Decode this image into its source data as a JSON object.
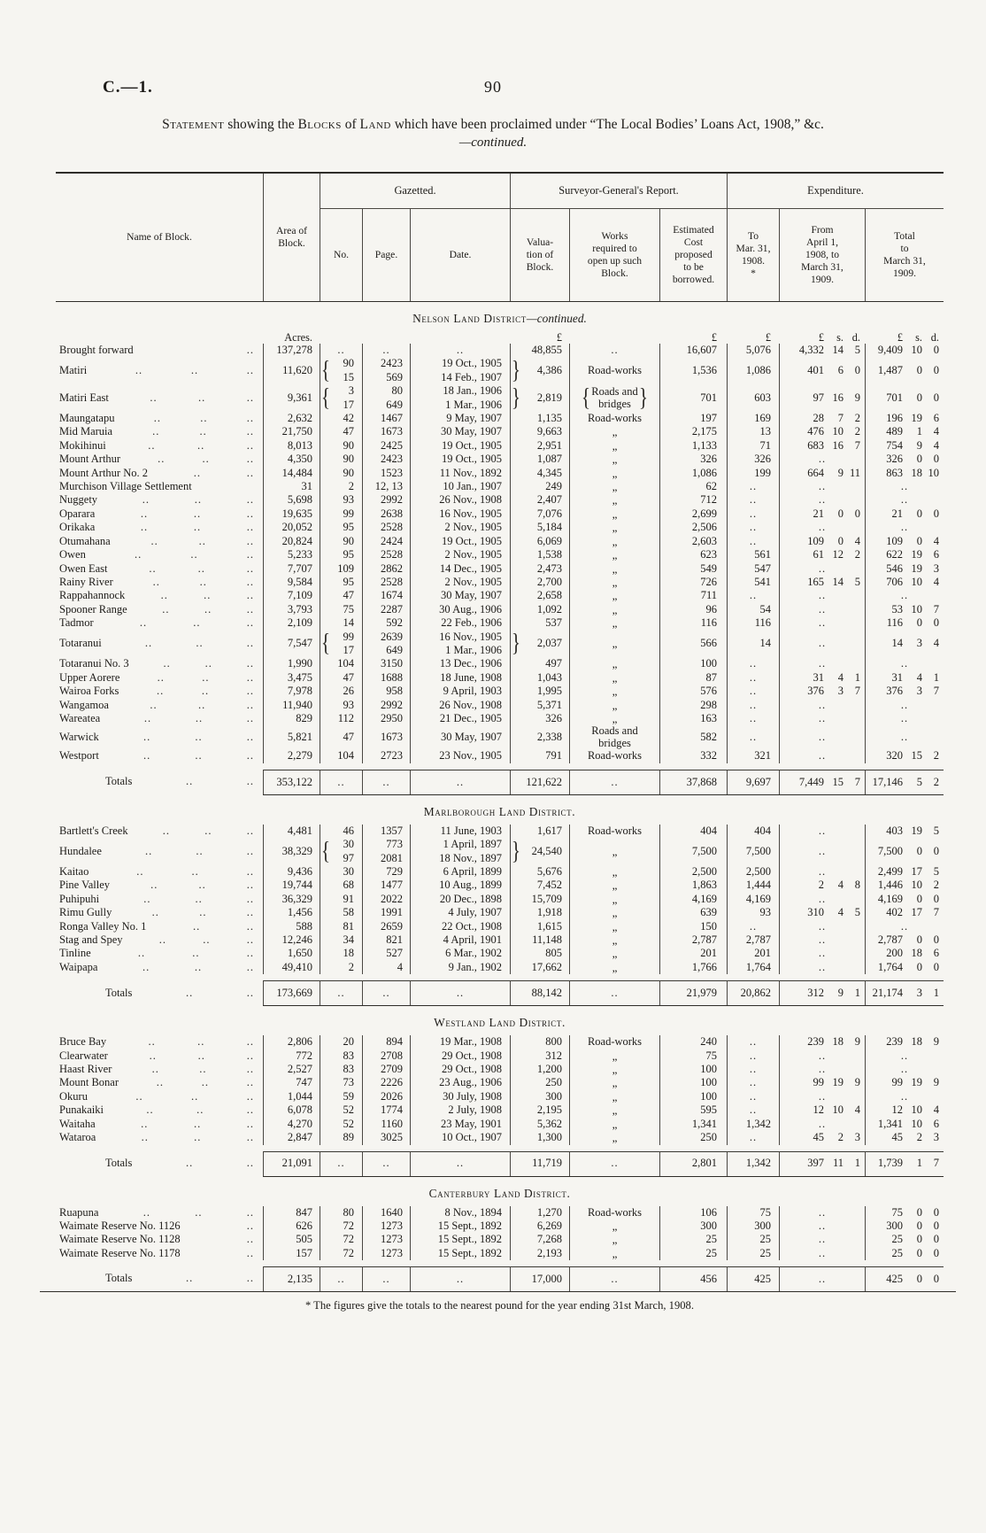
{
  "page": {
    "doc_ref": "C.—1.",
    "page_number": "90"
  },
  "title": {
    "segments": [
      {
        "text": "Statement",
        "smallcaps": true
      },
      {
        "text": " showing the ",
        "smallcaps": false
      },
      {
        "text": "Blocks",
        "smallcaps": true
      },
      {
        "text": " of ",
        "smallcaps": false
      },
      {
        "text": "Land",
        "smallcaps": true
      },
      {
        "text": " which have been proclaimed under “The Local Bodies’ Loans Act, 1908,” &c.",
        "smallcaps": false
      }
    ],
    "continued": "—continued."
  },
  "table": {
    "columns": {
      "name": "Name of Block.",
      "area": "Area of\nBlock.",
      "gazetted": "Gazetted.",
      "no": "No.",
      "page": "Page.",
      "date": "Date.",
      "sg_report": "Surveyor-General's Report.",
      "valuation": "Valua-\ntion of\nBlock.",
      "works": "Works\nrequired to\nopen up such\nBlock.",
      "est_cost": "Estimated\nCost\nproposed\nto be\nborrowed.",
      "expenditure": "Expenditure.",
      "to_mar": "To\nMar. 31,\n1908.\n*",
      "from_apr": "From\nApril 1,\n1908, to\nMarch 31,\n1909.",
      "total": "Total\nto\nMarch 31,\n1909."
    },
    "units": {
      "area": "Acres.",
      "val": "£",
      "est": "£",
      "prior": "£",
      "cur": "£ s. d.",
      "total": "£ s. d."
    },
    "totals_label": "Totals"
  },
  "sections": [
    {
      "heading": "Nelson Land District",
      "heading_suffix": "—continued.",
      "show_units": true,
      "rows": [
        {
          "name": "Brought forward",
          "dots": 1,
          "area": "137,278",
          "no": "..",
          "page": "..",
          "date": "..",
          "val": "48,855",
          "works": "..",
          "est": "16,607",
          "prior": "5,076",
          "cur": "4,332 14 5",
          "total": "9,409 10 0"
        },
        {
          "name": "Matiri",
          "area": "11,620",
          "no": [
            "90",
            "15"
          ],
          "page": [
            "2423",
            "569"
          ],
          "date": [
            "19 Oct., 1905",
            "14 Feb., 1907"
          ],
          "braced": true,
          "val": "4,386",
          "works": "Road-works",
          "est": "1,536",
          "prior": "1,086",
          "cur": "401 6 0",
          "total": "1,487 0 0"
        },
        {
          "name": "Matiri East",
          "area": "9,361",
          "no": [
            "3",
            "17"
          ],
          "page": [
            "80",
            "649"
          ],
          "date": [
            "18 Jan., 1906",
            "1 Mar., 1906"
          ],
          "braced": true,
          "val": "2,819",
          "works": "Roads and\nbridges",
          "works_braces": true,
          "est": "701",
          "prior": "603",
          "cur": "97 16 9",
          "total": "701 0 0"
        },
        {
          "name": "Maungatapu",
          "area": "2,632",
          "no": "42",
          "page": "1467",
          "date": "9 May, 1907",
          "val": "1,135",
          "works": "Road-works",
          "est": "197",
          "prior": "169",
          "cur": "28 7 2",
          "total": "196 19 6"
        },
        {
          "name": "Mid Maruia",
          "area": "21,750",
          "no": "47",
          "page": "1673",
          "date": "30 May, 1907",
          "val": "9,663",
          "works": "„",
          "est": "2,175",
          "prior": "13",
          "cur": "476 10 2",
          "total": "489 1 4"
        },
        {
          "name": "Mokihinui",
          "area": "8,013",
          "no": "90",
          "page": "2425",
          "date": "19 Oct., 1905",
          "val": "2,951",
          "works": "„",
          "est": "1,133",
          "prior": "71",
          "cur": "683 16 7",
          "total": "754 9 4"
        },
        {
          "name": "Mount Arthur",
          "area": "4,350",
          "no": "90",
          "page": "2423",
          "date": "19 Oct., 1905",
          "val": "1,087",
          "works": "„",
          "est": "326",
          "prior": "326",
          "cur": "..",
          "total": "326 0 0"
        },
        {
          "name": "Mount Arthur No. 2",
          "area": "14,484",
          "no": "90",
          "page": "1523",
          "date": "11 Nov., 1892",
          "val": "4,345",
          "works": "„",
          "est": "1,086",
          "prior": "199",
          "cur": "664 9 11",
          "total": "863 18 10"
        },
        {
          "name": "Murchison Village Settlement",
          "dots": 0,
          "area": "31",
          "no": "2",
          "page": "12, 13",
          "date": "10 Jan., 1907",
          "val": "249",
          "works": "„",
          "est": "62",
          "prior": "..",
          "cur": "..",
          "total": ".."
        },
        {
          "name": "Nuggety",
          "area": "5,698",
          "no": "93",
          "page": "2992",
          "date": "26 Nov., 1908",
          "val": "2,407",
          "works": "„",
          "est": "712",
          "prior": "..",
          "cur": "..",
          "total": ".."
        },
        {
          "name": "Oparara",
          "area": "19,635",
          "no": "99",
          "page": "2638",
          "date": "16 Nov., 1905",
          "val": "7,076",
          "works": "„",
          "est": "2,699",
          "prior": "..",
          "cur": "21 0 0",
          "total": "21 0 0"
        },
        {
          "name": "Orikaka",
          "area": "20,052",
          "no": "95",
          "page": "2528",
          "date": "2 Nov., 1905",
          "val": "5,184",
          "works": "„",
          "est": "2,506",
          "prior": "..",
          "cur": "..",
          "total": ".."
        },
        {
          "name": "Otumahana",
          "area": "20,824",
          "no": "90",
          "page": "2424",
          "date": "19 Oct., 1905",
          "val": "6,069",
          "works": "„",
          "est": "2,603",
          "prior": "..",
          "cur": "109 0 4",
          "total": "109 0 4"
        },
        {
          "name": "Owen",
          "area": "5,233",
          "no": "95",
          "page": "2528",
          "date": "2 Nov., 1905",
          "val": "1,538",
          "works": "„",
          "est": "623",
          "prior": "561",
          "cur": "61 12 2",
          "total": "622 19 6"
        },
        {
          "name": "Owen East",
          "area": "7,707",
          "no": "109",
          "page": "2862",
          "date": "14 Dec., 1905",
          "val": "2,473",
          "works": "„",
          "est": "549",
          "prior": "547",
          "cur": "..",
          "total": "546 19 3"
        },
        {
          "name": "Rainy River",
          "area": "9,584",
          "no": "95",
          "page": "2528",
          "date": "2 Nov., 1905",
          "val": "2,700",
          "works": "„",
          "est": "726",
          "prior": "541",
          "cur": "165 14 5",
          "total": "706 10 4"
        },
        {
          "name": "Rappahannock",
          "area": "7,109",
          "no": "47",
          "page": "1674",
          "date": "30 May, 1907",
          "val": "2,658",
          "works": "„",
          "est": "711",
          "prior": "..",
          "cur": "..",
          "total": ".."
        },
        {
          "name": "Spooner Range",
          "area": "3,793",
          "no": "75",
          "page": "2287",
          "date": "30 Aug., 1906",
          "val": "1,092",
          "works": "„",
          "est": "96",
          "prior": "54",
          "cur": "..",
          "total": "53 10 7"
        },
        {
          "name": "Tadmor",
          "area": "2,109",
          "no": "14",
          "page": "592",
          "date": "22 Feb., 1906",
          "val": "537",
          "works": "„",
          "est": "116",
          "prior": "116",
          "cur": "..",
          "total": "116 0 0"
        },
        {
          "name": "Totaranui",
          "area": "7,547",
          "no": [
            "99",
            "17"
          ],
          "page": [
            "2639",
            "649"
          ],
          "date": [
            "16 Nov., 1905",
            "1 Mar., 1906"
          ],
          "braced": true,
          "val": "2,037",
          "works": "„",
          "est": "566",
          "prior": "14",
          "cur": "..",
          "total": "14 3 4"
        },
        {
          "name": "Totaranui No. 3",
          "area": "1,990",
          "no": "104",
          "page": "3150",
          "date": "13 Dec., 1906",
          "val": "497",
          "works": "„",
          "est": "100",
          "prior": "..",
          "cur": "..",
          "total": ".."
        },
        {
          "name": "Upper Aorere",
          "area": "3,475",
          "no": "47",
          "page": "1688",
          "date": "18 June, 1908",
          "val": "1,043",
          "works": "„",
          "est": "87",
          "prior": "..",
          "cur": "31 4 1",
          "total": "31 4 1"
        },
        {
          "name": "Wairoa Forks",
          "area": "7,978",
          "no": "26",
          "page": "958",
          "date": "9 April, 1903",
          "val": "1,995",
          "works": "„",
          "est": "576",
          "prior": "..",
          "cur": "376 3 7",
          "total": "376 3 7"
        },
        {
          "name": "Wangamoa",
          "area": "11,940",
          "no": "93",
          "page": "2992",
          "date": "26 Nov., 1908",
          "val": "5,371",
          "works": "„",
          "est": "298",
          "prior": "..",
          "cur": "..",
          "total": ".."
        },
        {
          "name": "Wareatea",
          "area": "829",
          "no": "112",
          "page": "2950",
          "date": "21 Dec., 1905",
          "val": "326",
          "works": "„",
          "est": "163",
          "prior": "..",
          "cur": "..",
          "total": ".."
        },
        {
          "name": "Warwick",
          "area": "5,821",
          "no": "47",
          "page": "1673",
          "date": "30 May, 1907",
          "val": "2,338",
          "works": "Roads and\nbridges",
          "est": "582",
          "prior": "..",
          "cur": "..",
          "total": ".."
        },
        {
          "name": "Westport",
          "area": "2,279",
          "no": "104",
          "page": "2723",
          "date": "23 Nov., 1905",
          "val": "791",
          "works": "Road-works",
          "est": "332",
          "prior": "321",
          "cur": "..",
          "total": "320 15 2"
        }
      ],
      "totals": {
        "area": "353,122",
        "val": "121,622",
        "est": "37,868",
        "prior": "9,697",
        "cur": "7,449 15 7",
        "total": "17,146 5 2"
      }
    },
    {
      "heading": "Marlborough Land District.",
      "heading_suffix": "",
      "show_units": false,
      "rows": [
        {
          "name": "Bartlett's Creek",
          "area": "4,481",
          "no": "46",
          "page": "1357",
          "date": "11 June, 1903",
          "val": "1,617",
          "works": "Road-works",
          "est": "404",
          "prior": "404",
          "cur": "..",
          "total": "403 19 5"
        },
        {
          "name": "Hundalee",
          "area": "38,329",
          "no": [
            "30",
            "97"
          ],
          "page": [
            "773",
            "2081"
          ],
          "date": [
            "1 April, 1897",
            "18 Nov., 1897"
          ],
          "braced": true,
          "val": "24,540",
          "works": "„",
          "est": "7,500",
          "prior": "7,500",
          "cur": "..",
          "total": "7,500 0 0"
        },
        {
          "name": "Kaitao",
          "area": "9,436",
          "no": "30",
          "page": "729",
          "date": "6 April, 1899",
          "val": "5,676",
          "works": "„",
          "est": "2,500",
          "prior": "2,500",
          "cur": "..",
          "total": "2,499 17 5"
        },
        {
          "name": "Pine Valley",
          "area": "19,744",
          "no": "68",
          "page": "1477",
          "date": "10 Aug., 1899",
          "val": "7,452",
          "works": "„",
          "est": "1,863",
          "prior": "1,444",
          "cur": "2 4 8",
          "total": "1,446 10 2"
        },
        {
          "name": "Puhipuhi",
          "area": "36,329",
          "no": "91",
          "page": "2022",
          "date": "20 Dec., 1898",
          "val": "15,709",
          "works": "„",
          "est": "4,169",
          "prior": "4,169",
          "cur": "..",
          "total": "4,169 0 0"
        },
        {
          "name": "Rimu Gully",
          "area": "1,456",
          "no": "58",
          "page": "1991",
          "date": "4 July, 1907",
          "val": "1,918",
          "works": "„",
          "est": "639",
          "prior": "93",
          "cur": "310 4 5",
          "total": "402 17 7"
        },
        {
          "name": "Ronga Valley No. 1",
          "area": "588",
          "no": "81",
          "page": "2659",
          "date": "22 Oct., 1908",
          "val": "1,615",
          "works": "„",
          "est": "150",
          "prior": "..",
          "cur": "..",
          "total": ".."
        },
        {
          "name": "Stag and Spey",
          "area": "12,246",
          "no": "34",
          "page": "821",
          "date": "4 April, 1901",
          "val": "11,148",
          "works": "„",
          "est": "2,787",
          "prior": "2,787",
          "cur": "..",
          "total": "2,787 0 0"
        },
        {
          "name": "Tinline",
          "area": "1,650",
          "no": "18",
          "page": "527",
          "date": "6 Mar., 1902",
          "val": "805",
          "works": "„",
          "est": "201",
          "prior": "201",
          "cur": "..",
          "total": "200 18 6"
        },
        {
          "name": "Waipapa",
          "area": "49,410",
          "no": "2",
          "page": "4",
          "date": "9 Jan., 1902",
          "val": "17,662",
          "works": "„",
          "est": "1,766",
          "prior": "1,764",
          "cur": "..",
          "total": "1,764 0 0"
        }
      ],
      "totals": {
        "area": "173,669",
        "val": "88,142",
        "est": "21,979",
        "prior": "20,862",
        "cur": "312 9 1",
        "total": "21,174 3 1"
      }
    },
    {
      "heading": "Westland Land District.",
      "heading_suffix": "",
      "show_units": false,
      "rows": [
        {
          "name": "Bruce Bay",
          "area": "2,806",
          "no": "20",
          "page": "894",
          "date": "19 Mar., 1908",
          "val": "800",
          "works": "Road-works",
          "est": "240",
          "prior": "..",
          "cur": "239 18 9",
          "total": "239 18 9"
        },
        {
          "name": "Clearwater",
          "area": "772",
          "no": "83",
          "page": "2708",
          "date": "29 Oct., 1908",
          "val": "312",
          "works": "„",
          "est": "75",
          "prior": "..",
          "cur": "..",
          "total": ".."
        },
        {
          "name": "Haast River",
          "area": "2,527",
          "no": "83",
          "page": "2709",
          "date": "29 Oct., 1908",
          "val": "1,200",
          "works": "„",
          "est": "100",
          "prior": "..",
          "cur": "..",
          "total": ".."
        },
        {
          "name": "Mount Bonar",
          "area": "747",
          "no": "73",
          "page": "2226",
          "date": "23 Aug., 1906",
          "val": "250",
          "works": "„",
          "est": "100",
          "prior": "..",
          "cur": "99 19 9",
          "total": "99 19 9"
        },
        {
          "name": "Okuru",
          "area": "1,044",
          "no": "59",
          "page": "2026",
          "date": "30 July, 1908",
          "val": "300",
          "works": "„",
          "est": "100",
          "prior": "..",
          "cur": "..",
          "total": ".."
        },
        {
          "name": "Punakaiki",
          "area": "6,078",
          "no": "52",
          "page": "1774",
          "date": "2 July, 1908",
          "val": "2,195",
          "works": "„",
          "est": "595",
          "prior": "..",
          "cur": "12 10 4",
          "total": "12 10 4"
        },
        {
          "name": "Waitaha",
          "area": "4,270",
          "no": "52",
          "page": "1160",
          "date": "23 May, 1901",
          "val": "5,362",
          "works": "„",
          "est": "1,341",
          "prior": "1,342",
          "cur": "..",
          "total": "1,341 10 6"
        },
        {
          "name": "Wataroa",
          "area": "2,847",
          "no": "89",
          "page": "3025",
          "date": "10 Oct., 1907",
          "val": "1,300",
          "works": "„",
          "est": "250",
          "prior": "..",
          "cur": "45 2 3",
          "total": "45 2 3"
        }
      ],
      "totals": {
        "area": "21,091",
        "val": "11,719",
        "est": "2,801",
        "prior": "1,342",
        "cur": "397 11 1",
        "total": "1,739 1 7"
      }
    },
    {
      "heading": "Canterbury Land District.",
      "heading_suffix": "",
      "show_units": false,
      "final": true,
      "rows": [
        {
          "name": "Ruapuna",
          "area": "847",
          "no": "80",
          "page": "1640",
          "date": "8 Nov., 1894",
          "val": "1,270",
          "works": "Road-works",
          "est": "106",
          "prior": "75",
          "cur": "..",
          "total": "75 0 0"
        },
        {
          "name": "Waimate Reserve No. 1126",
          "dots": 1,
          "area": "626",
          "no": "72",
          "page": "1273",
          "date": "15 Sept., 1892",
          "val": "6,269",
          "works": "„",
          "est": "300",
          "prior": "300",
          "cur": "..",
          "total": "300 0 0"
        },
        {
          "name": "Waimate Reserve No. 1128",
          "dots": 1,
          "area": "505",
          "no": "72",
          "page": "1273",
          "date": "15 Sept., 1892",
          "val": "7,268",
          "works": "„",
          "est": "25",
          "prior": "25",
          "cur": "..",
          "total": "25 0 0"
        },
        {
          "name": "Waimate Reserve No. 1178",
          "dots": 1,
          "area": "157",
          "no": "72",
          "page": "1273",
          "date": "15 Sept., 1892",
          "val": "2,193",
          "works": "„",
          "est": "25",
          "prior": "25",
          "cur": "..",
          "total": "25 0 0"
        }
      ],
      "totals": {
        "area": "2,135",
        "val": "17,000",
        "est": "456",
        "prior": "425",
        "cur": "..",
        "total": "425 0 0"
      }
    }
  ],
  "footnote": "* The figures give the totals to the nearest pound for the year ending 31st March, 1908."
}
